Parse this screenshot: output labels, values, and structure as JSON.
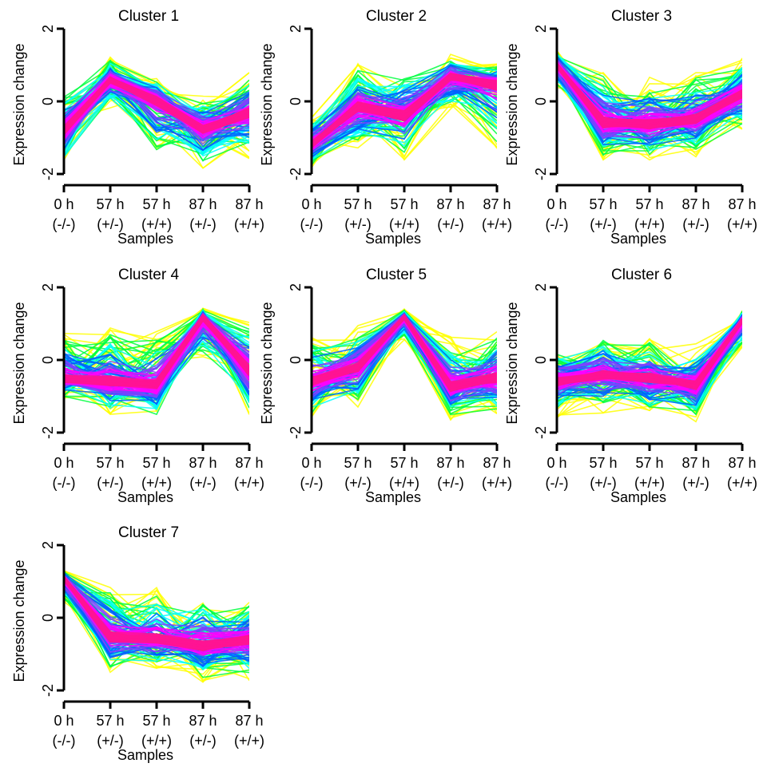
{
  "chart_data": [
    {
      "type": "line",
      "title": "Cluster 1",
      "xlabel": "Samples",
      "ylabel": "Expression change",
      "categories": [
        "0 h (-/-)",
        "57 h (+/-)",
        "57 h (+/+)",
        "87 h (+/-)",
        "87 h (+/+)"
      ],
      "categories_line1": [
        "0 h",
        "57 h",
        "57 h",
        "87 h",
        "87 h"
      ],
      "categories_line2": [
        "(-/-)",
        "(+/-)",
        "(+/+)",
        "(+/-)",
        "(+/+)"
      ],
      "yticks": [
        "-2",
        "0",
        "2"
      ],
      "ylim": [
        -2,
        2
      ],
      "centroid": [
        -0.8,
        0.6,
        0.05,
        -0.75,
        -0.3
      ],
      "band_upper": [
        0.3,
        1.25,
        0.7,
        0.15,
        0.8
      ],
      "band_lower": [
        -1.85,
        -0.2,
        -1.6,
        -1.85,
        -1.6
      ],
      "colors": [
        "#ffff00",
        "#00ff40",
        "#00ffff",
        "#0060ff",
        "#8040ff",
        "#ff00ff",
        "#ff1493"
      ]
    },
    {
      "type": "line",
      "title": "Cluster 2",
      "xlabel": "Samples",
      "ylabel": "Expression change",
      "categories": [
        "0 h (-/-)",
        "57 h (+/-)",
        "57 h (+/+)",
        "87 h (+/-)",
        "87 h (+/+)"
      ],
      "categories_line1": [
        "0 h",
        "57 h",
        "57 h",
        "87 h",
        "87 h"
      ],
      "categories_line2": [
        "(-/-)",
        "(+/-)",
        "(+/+)",
        "(+/-)",
        "(+/+)"
      ],
      "yticks": [
        "-2",
        "0",
        "2"
      ],
      "ylim": [
        -2,
        2
      ],
      "centroid": [
        -1.2,
        -0.15,
        -0.4,
        0.7,
        0.5
      ],
      "band_upper": [
        -0.4,
        1.1,
        0.9,
        1.3,
        1.1
      ],
      "band_lower": [
        -1.85,
        -1.3,
        -1.65,
        -0.3,
        -1.4
      ],
      "colors": [
        "#ffff00",
        "#00ff40",
        "#00ffff",
        "#0060ff",
        "#8040ff",
        "#ff00ff",
        "#ff1493"
      ]
    },
    {
      "type": "line",
      "title": "Cluster 3",
      "xlabel": "Samples",
      "ylabel": "Expression change",
      "categories": [
        "0 h (-/-)",
        "57 h (+/-)",
        "57 h (+/+)",
        "87 h (+/-)",
        "87 h (+/+)"
      ],
      "categories_line1": [
        "0 h",
        "57 h",
        "57 h",
        "87 h",
        "87 h"
      ],
      "categories_line2": [
        "(-/-)",
        "(+/-)",
        "(+/+)",
        "(+/-)",
        "(+/+)"
      ],
      "yticks": [
        "-2",
        "0",
        "2"
      ],
      "ylim": [
        -2,
        2
      ],
      "centroid": [
        1.0,
        -0.6,
        -0.65,
        -0.5,
        0.2
      ],
      "band_upper": [
        1.45,
        0.95,
        0.7,
        0.85,
        1.25
      ],
      "band_lower": [
        0.35,
        -1.7,
        -1.65,
        -1.55,
        -0.8
      ],
      "colors": [
        "#ffff00",
        "#00ff40",
        "#00ffff",
        "#0060ff",
        "#8040ff",
        "#ff00ff",
        "#ff1493"
      ]
    },
    {
      "type": "line",
      "title": "Cluster 4",
      "xlabel": "Samples",
      "ylabel": "Expression change",
      "categories": [
        "0 h (-/-)",
        "57 h (+/-)",
        "57 h (+/+)",
        "87 h (+/-)",
        "87 h (+/+)"
      ],
      "categories_line1": [
        "0 h",
        "57 h",
        "57 h",
        "87 h",
        "87 h"
      ],
      "categories_line2": [
        "(-/-)",
        "(+/-)",
        "(+/+)",
        "(+/-)",
        "(+/+)"
      ],
      "yticks": [
        "-2",
        "0",
        "2"
      ],
      "ylim": [
        -2,
        2
      ],
      "centroid": [
        -0.55,
        -0.6,
        -0.7,
        1.2,
        -0.3
      ],
      "band_upper": [
        0.85,
        0.95,
        0.85,
        1.45,
        1.05
      ],
      "band_lower": [
        -1.1,
        -1.65,
        -1.65,
        0.05,
        -1.6
      ],
      "colors": [
        "#ffff00",
        "#00ff40",
        "#00ffff",
        "#0060ff",
        "#8040ff",
        "#ff00ff",
        "#ff1493"
      ]
    },
    {
      "type": "line",
      "title": "Cluster 5",
      "xlabel": "Samples",
      "ylabel": "Expression change",
      "categories": [
        "0 h (-/-)",
        "57 h (+/-)",
        "57 h (+/+)",
        "87 h (+/-)",
        "87 h (+/+)"
      ],
      "categories_line1": [
        "0 h",
        "57 h",
        "57 h",
        "87 h",
        "87 h"
      ],
      "categories_line2": [
        "(-/-)",
        "(+/-)",
        "(+/+)",
        "(+/-)",
        "(+/+)"
      ],
      "yticks": [
        "-2",
        "0",
        "2"
      ],
      "ylim": [
        -2,
        2
      ],
      "centroid": [
        -0.6,
        -0.2,
        1.2,
        -0.75,
        -0.5
      ],
      "band_upper": [
        0.65,
        0.95,
        1.4,
        0.65,
        0.85
      ],
      "band_lower": [
        -1.7,
        -1.3,
        0.55,
        -1.75,
        -1.6
      ],
      "colors": [
        "#ffff00",
        "#00ff40",
        "#00ffff",
        "#0060ff",
        "#8040ff",
        "#ff00ff",
        "#ff1493"
      ]
    },
    {
      "type": "line",
      "title": "Cluster 6",
      "xlabel": "Samples",
      "ylabel": "Expression change",
      "categories": [
        "0 h (-/-)",
        "57 h (+/-)",
        "57 h (+/+)",
        "87 h (+/-)",
        "87 h (+/+)"
      ],
      "categories_line1": [
        "0 h",
        "57 h",
        "57 h",
        "87 h",
        "87 h"
      ],
      "categories_line2": [
        "(-/-)",
        "(+/-)",
        "(+/+)",
        "(+/-)",
        "(+/+)"
      ],
      "yticks": [
        "-2",
        "0",
        "2"
      ],
      "ylim": [
        -2,
        2
      ],
      "centroid": [
        -0.6,
        -0.4,
        -0.5,
        -0.7,
        1.1
      ],
      "band_upper": [
        0.35,
        0.8,
        0.7,
        0.45,
        1.4
      ],
      "band_lower": [
        -1.6,
        -1.5,
        -1.6,
        -1.7,
        0.3
      ],
      "colors": [
        "#ffff00",
        "#00ff40",
        "#00ffff",
        "#0060ff",
        "#8040ff",
        "#ff00ff",
        "#ff1493"
      ]
    },
    {
      "type": "line",
      "title": "Cluster 7",
      "xlabel": "Samples",
      "ylabel": "Expression change",
      "categories": [
        "0 h (-/-)",
        "57 h (+/-)",
        "57 h (+/+)",
        "87 h (+/-)",
        "87 h (+/+)"
      ],
      "categories_line1": [
        "0 h",
        "57 h",
        "57 h",
        "87 h",
        "87 h"
      ],
      "categories_line2": [
        "(-/-)",
        "(+/-)",
        "(+/+)",
        "(+/-)",
        "(+/+)"
      ],
      "yticks": [
        "-2",
        "0",
        "2"
      ],
      "ylim": [
        -2,
        2
      ],
      "centroid": [
        1.1,
        -0.55,
        -0.6,
        -0.8,
        -0.6
      ],
      "band_upper": [
        1.35,
        0.95,
        0.85,
        0.75,
        0.5
      ],
      "band_lower": [
        0.4,
        -1.55,
        -1.45,
        -1.8,
        -1.75
      ],
      "colors": [
        "#ffff00",
        "#00ff40",
        "#00ffff",
        "#0060ff",
        "#8040ff",
        "#ff00ff",
        "#ff1493"
      ]
    }
  ]
}
